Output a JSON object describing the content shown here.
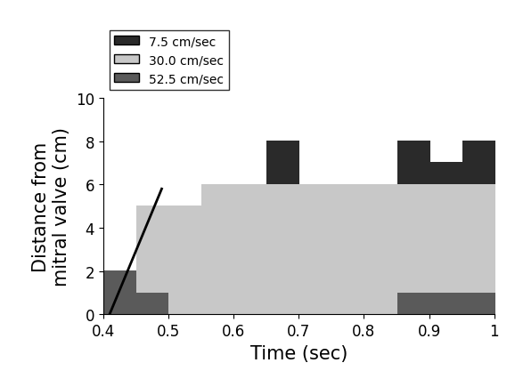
{
  "chart_data": {
    "type": "heatmap",
    "x_label": "Time (sec)",
    "y_label": "Distance from\nmitral valve (cm)",
    "xlim": [
      0.4,
      1
    ],
    "xticks": [
      0.4,
      0.5,
      0.6,
      0.7,
      0.8,
      0.9,
      1
    ],
    "ylim": [
      0,
      10
    ],
    "yticks": [
      0,
      2,
      4,
      6,
      8,
      10
    ],
    "legend": "upper left",
    "x_edges": [
      0.4,
      0.45,
      0.5,
      0.55,
      0.6,
      0.65,
      0.7,
      0.75,
      0.8,
      0.85,
      0.9,
      0.95,
      1.0
    ],
    "y_edges": [
      0,
      1,
      2,
      3,
      4,
      5,
      6,
      7,
      8
    ],
    "levels": [
      {
        "name": "7.5 cm/sec",
        "value": 7.5,
        "color": "#2a2a2a"
      },
      {
        "name": "30.0 cm/sec",
        "value": 30.0,
        "color": "#c8c8c8"
      },
      {
        "name": "52.5 cm/sec",
        "value": 52.5,
        "color": "#5a5a5a"
      }
    ],
    "cells": [
      [
        52.5,
        52.5,
        30,
        30,
        30,
        30,
        30,
        30,
        30,
        52.5,
        52.5,
        52.5
      ],
      [
        52.5,
        30,
        30,
        30,
        30,
        30,
        30,
        30,
        30,
        30,
        30,
        30
      ],
      [
        null,
        30,
        30,
        30,
        30,
        30,
        30,
        30,
        30,
        30,
        30,
        30
      ],
      [
        null,
        30,
        30,
        30,
        30,
        30,
        30,
        30,
        30,
        30,
        30,
        30
      ],
      [
        null,
        30,
        30,
        30,
        30,
        30,
        30,
        30,
        30,
        30,
        30,
        30
      ],
      [
        null,
        null,
        null,
        30,
        30,
        30,
        30,
        30,
        30,
        30,
        30,
        30
      ],
      [
        null,
        null,
        null,
        null,
        null,
        7.5,
        null,
        null,
        null,
        7.5,
        7.5,
        7.5
      ],
      [
        null,
        null,
        null,
        null,
        null,
        7.5,
        null,
        null,
        null,
        7.5,
        null,
        7.5
      ]
    ],
    "series": [
      {
        "type": "line",
        "color": "#000000",
        "x": [
          0.41,
          0.49
        ],
        "values": [
          0,
          5.8
        ]
      }
    ]
  }
}
